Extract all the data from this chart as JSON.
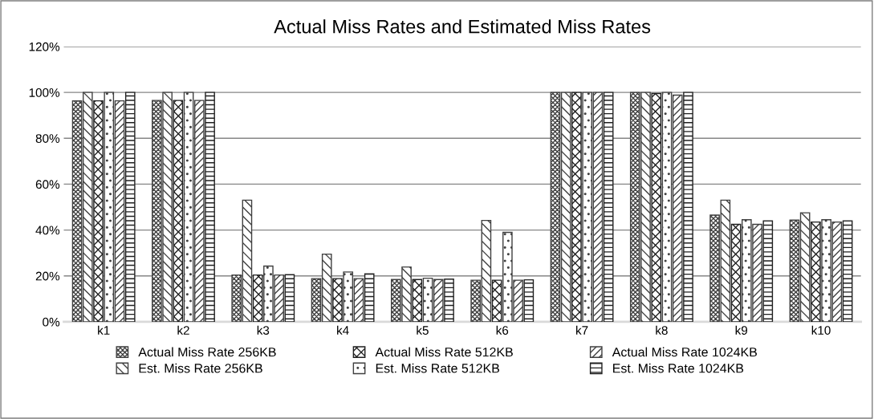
{
  "chart_data": {
    "type": "bar",
    "title": "Actual Miss Rates and Estimated Miss Rates",
    "categories": [
      "k1",
      "k2",
      "k3",
      "k4",
      "k5",
      "k6",
      "k7",
      "k8",
      "k9",
      "k10"
    ],
    "series": [
      {
        "name": "Actual Miss Rate 256KB",
        "color": "#404040",
        "values": [
          96.3,
          96.5,
          20.4,
          18.8,
          18.4,
          18.1,
          100,
          100,
          46.5,
          44.3
        ]
      },
      {
        "name": "Est. Miss Rate 256KB",
        "color": "#404040",
        "values": [
          100,
          100,
          53,
          29.5,
          23.9,
          44.2,
          100,
          100,
          53,
          47.5
        ]
      },
      {
        "name": "Actual Miss Rate 512KB",
        "color": "#202020",
        "values": [
          96.3,
          96.5,
          20.4,
          18.8,
          18.4,
          18.1,
          100,
          99.5,
          42.5,
          43.5
        ]
      },
      {
        "name": "Est. Miss Rate 512KB",
        "color": "#404040",
        "values": [
          100,
          100,
          24.3,
          21.7,
          19.0,
          39.0,
          100,
          100,
          44.5,
          44.5
        ]
      },
      {
        "name": "Actual Miss Rate 1024KB",
        "color": "#404040",
        "values": [
          96.3,
          96.5,
          20.4,
          18.8,
          18.4,
          18.1,
          100,
          98.8,
          42.5,
          43.5
        ]
      },
      {
        "name": "Est. Miss Rate 1024KB",
        "color": "#202020",
        "values": [
          100,
          100,
          20.5,
          20.9,
          18.6,
          18.3,
          100,
          100,
          44,
          44
        ]
      }
    ],
    "ylim": [
      0,
      120
    ],
    "yticks": [
      {
        "value": 0,
        "label": "0%"
      },
      {
        "value": 20,
        "label": "20%"
      },
      {
        "value": 40,
        "label": "40%"
      },
      {
        "value": 60,
        "label": "60%"
      },
      {
        "value": 80,
        "label": "80%"
      },
      {
        "value": 100,
        "label": "100%"
      },
      {
        "value": 120,
        "label": "120%"
      }
    ],
    "grid": "y",
    "legend": "bottom"
  }
}
